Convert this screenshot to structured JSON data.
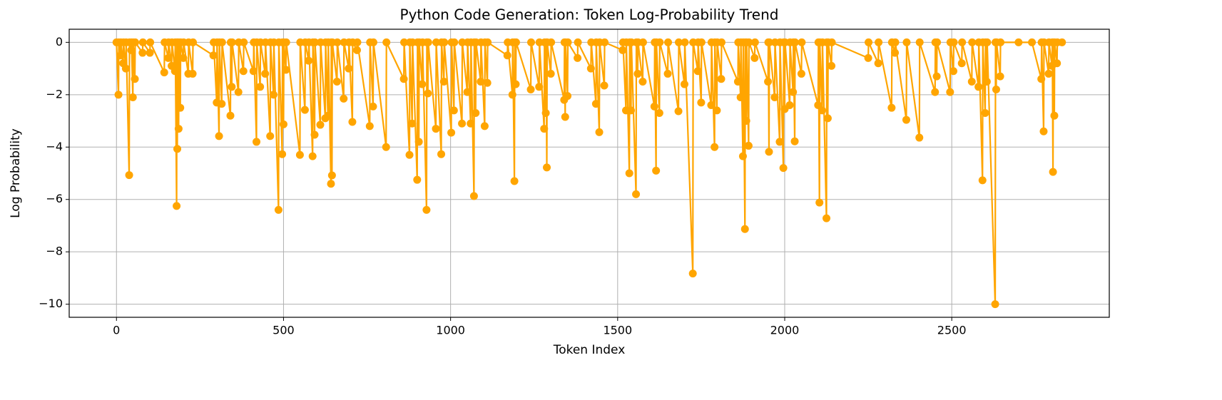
{
  "chart_data": {
    "type": "line",
    "title": "Python Code Generation: Token Log-Probability Trend",
    "x_label": "Token Index",
    "y_label": "Log Probability",
    "x": [
      0,
      6,
      7,
      12,
      13,
      20,
      21,
      28,
      29,
      38,
      39,
      44,
      45,
      49,
      50,
      55,
      56,
      78,
      79,
      100,
      101,
      143,
      144,
      155,
      156,
      165,
      166,
      175,
      176,
      180,
      181,
      182,
      183,
      186,
      187,
      191,
      192,
      200,
      201,
      215,
      216,
      228,
      229,
      290,
      291,
      300,
      301,
      307,
      308,
      315,
      316,
      341,
      342,
      345,
      346,
      365,
      366,
      380,
      381,
      410,
      411,
      419,
      420,
      430,
      431,
      445,
      446,
      460,
      461,
      470,
      471,
      485,
      486,
      496,
      497,
      500,
      501,
      507,
      508,
      549,
      550,
      564,
      565,
      575,
      576,
      587,
      588,
      593,
      594,
      610,
      611,
      625,
      626,
      633,
      634,
      642,
      643,
      645,
      646,
      660,
      661,
      680,
      681,
      695,
      696,
      706,
      707,
      720,
      721,
      758,
      759,
      768,
      769,
      807,
      808,
      860,
      861,
      877,
      878,
      885,
      886,
      900,
      901,
      905,
      906,
      915,
      916,
      928,
      929,
      932,
      933,
      956,
      957,
      972,
      973,
      980,
      981,
      1002,
      1003,
      1010,
      1011,
      1034,
      1035,
      1050,
      1051,
      1060,
      1061,
      1070,
      1071,
      1075,
      1076,
      1090,
      1091,
      1102,
      1103,
      1110,
      1111,
      1170,
      1171,
      1185,
      1186,
      1191,
      1192,
      1195,
      1196,
      1240,
      1241,
      1265,
      1266,
      1280,
      1281,
      1285,
      1286,
      1288,
      1289,
      1300,
      1301,
      1340,
      1341,
      1343,
      1344,
      1350,
      1351,
      1380,
      1381,
      1420,
      1421,
      1435,
      1436,
      1445,
      1446,
      1460,
      1461,
      1515,
      1516,
      1525,
      1526,
      1535,
      1536,
      1540,
      1541,
      1555,
      1556,
      1560,
      1561,
      1575,
      1576,
      1610,
      1611,
      1615,
      1616,
      1625,
      1626,
      1650,
      1651,
      1682,
      1683,
      1700,
      1701,
      1725,
      1726,
      1740,
      1741,
      1750,
      1751,
      1780,
      1781,
      1790,
      1791,
      1797,
      1798,
      1810,
      1811,
      1860,
      1861,
      1868,
      1869,
      1875,
      1876,
      1881,
      1882,
      1885,
      1886,
      1892,
      1893,
      1910,
      1911,
      1950,
      1951,
      1953,
      1954,
      1970,
      1971,
      1985,
      1986,
      1996,
      1997,
      2000,
      2001,
      2015,
      2016,
      2025,
      2026,
      2030,
      2031,
      2050,
      2051,
      2100,
      2101,
      2104,
      2105,
      2112,
      2113,
      2125,
      2126,
      2129,
      2130,
      2140,
      2141,
      2250,
      2251,
      2280,
      2281,
      2320,
      2321,
      2330,
      2331,
      2364,
      2365,
      2403,
      2404,
      2450,
      2451,
      2455,
      2456,
      2495,
      2496,
      2505,
      2506,
      2530,
      2531,
      2560,
      2561,
      2580,
      2581,
      2592,
      2593,
      2600,
      2601,
      2605,
      2606,
      2630,
      2631,
      2633,
      2634,
      2645,
      2646,
      2700,
      2740,
      2768,
      2769,
      2775,
      2776,
      2790,
      2791,
      2800,
      2801,
      2803,
      2804,
      2807,
      2808,
      2815,
      2816,
      2830
    ],
    "series": [
      {
        "color": "#ffa500",
        "values": [
          0,
          -2.0,
          0,
          -0.5,
          0,
          -0.8,
          0,
          -1.0,
          0,
          -5.07,
          0,
          -0.3,
          0,
          -2.1,
          0,
          -1.4,
          0,
          -0.4,
          0,
          -0.4,
          0,
          -1.15,
          0,
          -0.6,
          0,
          -0.9,
          0,
          -1.1,
          0,
          -6.25,
          0,
          -4.07,
          0,
          -3.3,
          0,
          -2.5,
          0,
          -0.6,
          0,
          -1.2,
          0,
          -1.2,
          0,
          -0.5,
          0,
          -2.3,
          0,
          -3.58,
          0,
          -2.35,
          0,
          -2.8,
          0,
          -1.7,
          0,
          -1.9,
          0,
          -1.1,
          0,
          -1.1,
          0,
          -3.8,
          0,
          -1.7,
          0,
          -1.2,
          0,
          -3.58,
          0,
          -2.0,
          0,
          -6.4,
          0,
          -4.27,
          0,
          -3.13,
          0,
          -1.05,
          0,
          -4.3,
          0,
          -2.58,
          0,
          -0.7,
          0,
          -4.35,
          0,
          -3.53,
          0,
          -3.15,
          0,
          -2.9,
          0,
          -2.8,
          0,
          -5.4,
          0,
          -5.08,
          0,
          -1.5,
          0,
          -2.15,
          0,
          -1.0,
          0,
          -3.04,
          0,
          -0.3,
          0,
          -3.2,
          0,
          -2.45,
          0,
          -4.0,
          0,
          -1.4,
          0,
          -4.3,
          0,
          -3.1,
          0,
          -5.25,
          0,
          -3.8,
          0,
          -1.6,
          0,
          -6.4,
          0,
          -1.95,
          0,
          -3.3,
          0,
          -4.27,
          0,
          -1.5,
          0,
          -3.45,
          0,
          -2.6,
          0,
          -3.1,
          0,
          -1.9,
          0,
          -3.1,
          0,
          -5.87,
          0,
          -2.7,
          0,
          -1.5,
          0,
          -3.2,
          0,
          -1.55,
          0,
          -0.5,
          0,
          -2.0,
          0,
          -5.3,
          0,
          -1.6,
          0,
          -1.8,
          0,
          -1.7,
          0,
          -3.3,
          0,
          -2.7,
          0,
          -4.78,
          0,
          -1.2,
          0,
          -2.2,
          0,
          -2.85,
          0,
          -2.05,
          0,
          -0.6,
          0,
          -1.0,
          0,
          -2.35,
          0,
          -3.43,
          0,
          -1.65,
          0,
          -0.3,
          0,
          -2.6,
          0,
          -5.0,
          0,
          -2.6,
          0,
          -5.8,
          0,
          -1.2,
          0,
          -1.5,
          0,
          -2.45,
          0,
          -4.9,
          0,
          -2.7,
          0,
          -1.2,
          0,
          -2.63,
          0,
          -1.6,
          0,
          -8.83,
          0,
          -1.1,
          0,
          -2.3,
          0,
          -2.4,
          0,
          -4.0,
          0,
          -2.6,
          0,
          -1.4,
          0,
          -1.5,
          0,
          -2.1,
          0,
          -4.35,
          0,
          -7.13,
          0,
          -3.0,
          0,
          -3.95,
          0,
          -0.6,
          0,
          -1.5,
          0,
          -4.18,
          0,
          -2.1,
          0,
          -3.8,
          0,
          -4.8,
          0,
          -2.55,
          0,
          -2.4,
          0,
          -1.9,
          0,
          -3.78,
          0,
          -1.2,
          0,
          -2.4,
          0,
          -6.12,
          0,
          -2.6,
          0,
          -6.72,
          0,
          -2.9,
          0,
          -0.9,
          0,
          -0.6,
          0,
          -0.8,
          0,
          -2.5,
          0,
          -0.4,
          0,
          -2.96,
          0,
          -3.64,
          0,
          -1.9,
          0,
          -1.3,
          0,
          -1.9,
          0,
          -1.1,
          0,
          -0.8,
          0,
          -1.5,
          0,
          -1.7,
          0,
          -5.27,
          0,
          -2.7,
          0,
          -1.5,
          0,
          -10.0,
          0,
          -1.8,
          0,
          -1.3,
          0,
          0,
          0,
          -1.4,
          0,
          -3.4,
          0,
          -1.2,
          0,
          -0.9,
          0,
          -4.95,
          0,
          -2.8,
          0,
          -0.8,
          0,
          0
        ]
      }
    ],
    "xlim": [
      -141.5,
      2971.5
    ],
    "ylim": [
      -10.5,
      0.5
    ],
    "xticks": [
      0,
      500,
      1000,
      1500,
      2000,
      2500
    ],
    "yticks": [
      {
        "value": -10,
        "label": "−10"
      },
      {
        "value": -8,
        "label": "−8"
      },
      {
        "value": -6,
        "label": "−6"
      },
      {
        "value": -4,
        "label": "−4"
      },
      {
        "value": -2,
        "label": "−2"
      },
      0
    ],
    "grid": true,
    "markers": true
  }
}
